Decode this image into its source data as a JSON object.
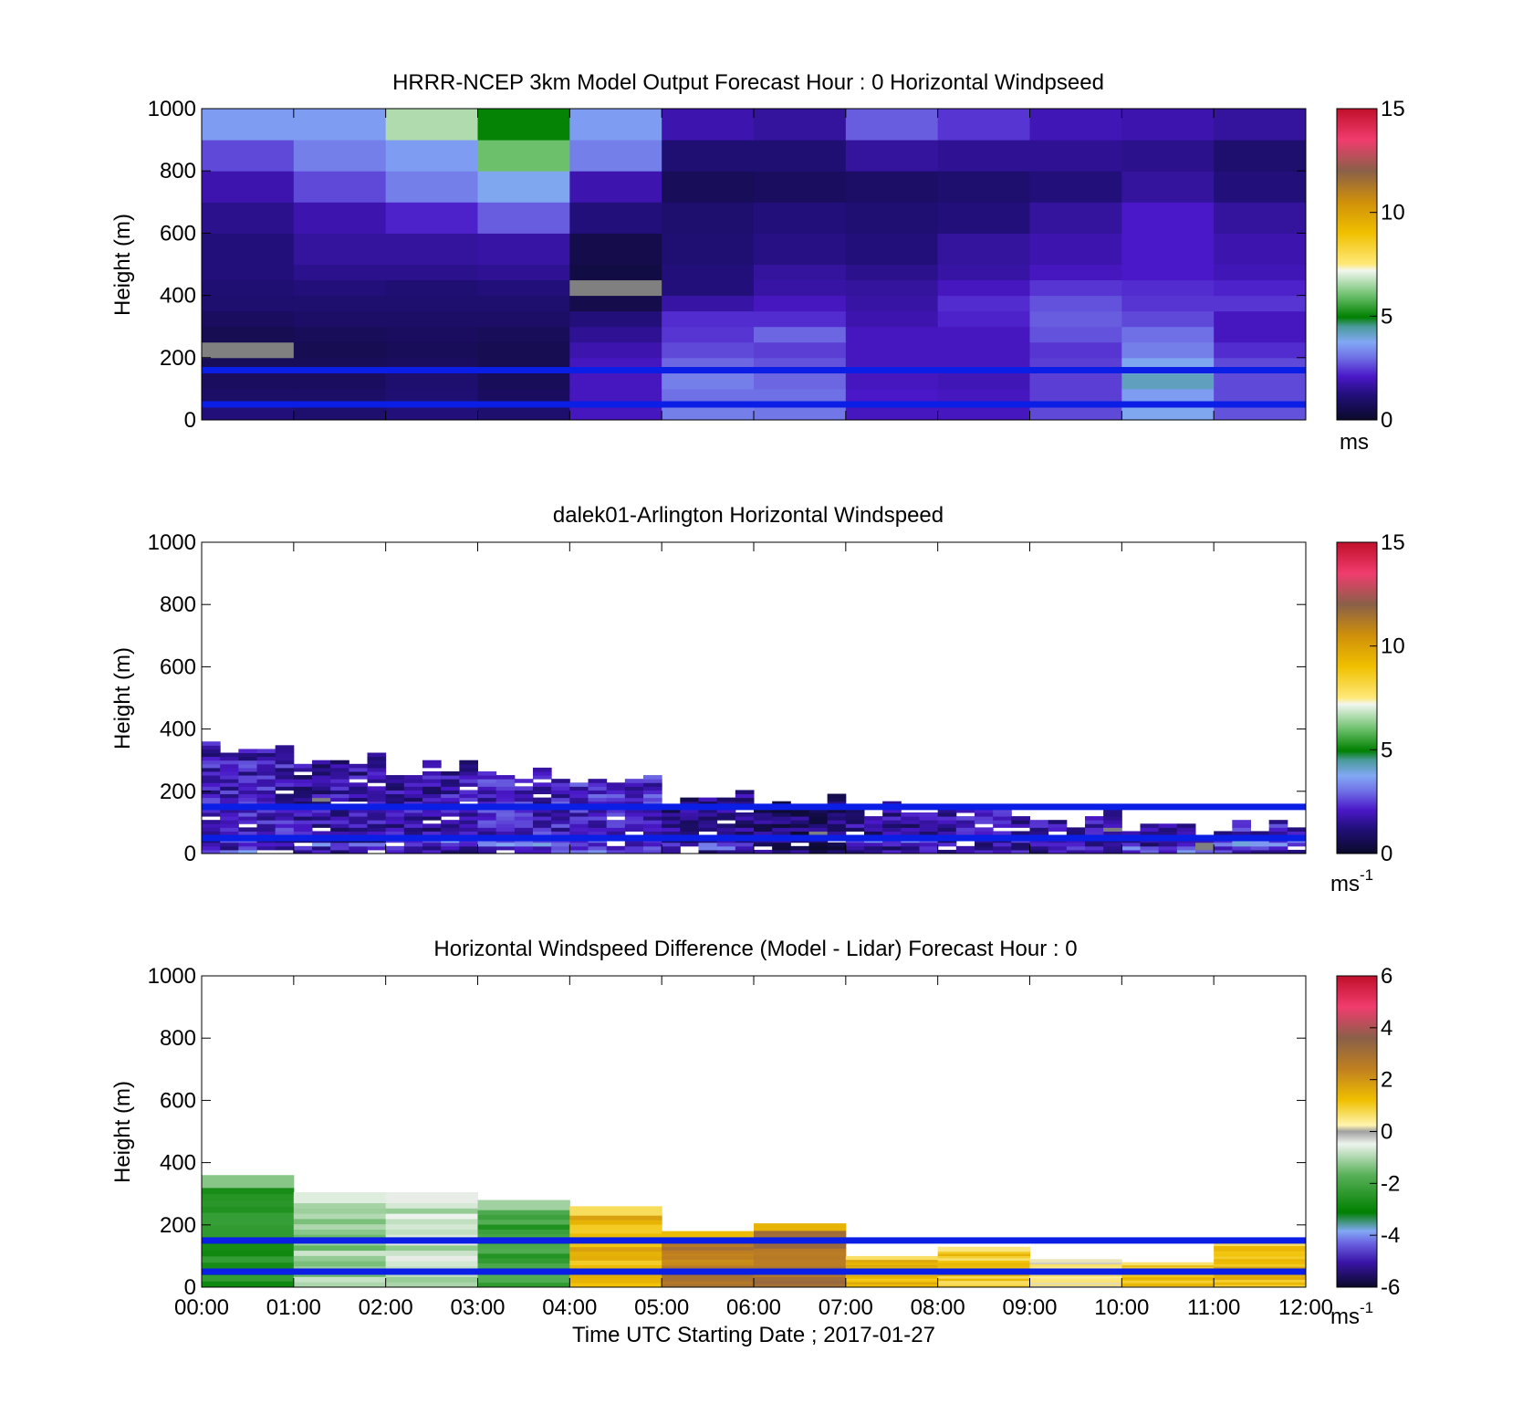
{
  "figure": {
    "xlabel": "Time UTC  Starting Date ; 2017-01-27",
    "x_ticks": [
      "00:00",
      "01:00",
      "02:00",
      "03:00",
      "04:00",
      "05:00",
      "06:00",
      "07:00",
      "08:00",
      "09:00",
      "10:00",
      "11:00",
      "12:00"
    ]
  },
  "chart_data": [
    {
      "type": "heatmap",
      "title": "HRRR-NCEP 3km Model Output   Forecast Hour : 0 Horizontal Windpseed",
      "ylabel": "Height (m)",
      "xlabel": "",
      "x_range": [
        "00:00",
        "12:00"
      ],
      "ylim": [
        0,
        1000
      ],
      "y_ticks": [
        "0",
        "200",
        "400",
        "600",
        "800",
        "1000"
      ],
      "colorbar": {
        "min": 0,
        "max": 15,
        "ticks": [
          "0",
          "5",
          "10",
          "15"
        ],
        "unit": "ms",
        "unit_exp": ""
      },
      "reference_lines_m": [
        160,
        50
      ],
      "reference_line_color": "#0a1ee6",
      "grid": false,
      "hours": [
        0,
        1,
        2,
        3,
        4,
        5,
        6,
        7,
        8,
        9,
        10,
        11
      ],
      "levels_m": [
        [
          0,
          50
        ],
        [
          50,
          100
        ],
        [
          100,
          150
        ],
        [
          150,
          200
        ],
        [
          200,
          250
        ],
        [
          250,
          300
        ],
        [
          300,
          350
        ],
        [
          350,
          400
        ],
        [
          400,
          450
        ],
        [
          450,
          500
        ],
        [
          500,
          600
        ],
        [
          600,
          700
        ],
        [
          700,
          800
        ],
        [
          800,
          900
        ],
        [
          900,
          1000
        ]
      ],
      "values": [
        [
          1.2,
          1.0,
          1.2,
          1.0,
          2.0,
          3.2,
          3.1,
          2.0,
          2.0,
          2.6,
          3.8,
          2.7
        ],
        [
          0.9,
          0.9,
          1.1,
          0.8,
          2.0,
          3.0,
          3.0,
          2.1,
          2.0,
          2.5,
          3.6,
          2.6
        ],
        [
          0.8,
          0.8,
          1.0,
          0.7,
          2.0,
          3.2,
          2.9,
          2.0,
          1.9,
          2.5,
          4.2,
          2.6
        ],
        [
          0.7,
          0.7,
          0.8,
          0.6,
          2.0,
          2.9,
          2.7,
          2.0,
          2.0,
          2.5,
          3.8,
          2.6
        ],
        [
          "no_data",
          0.6,
          0.7,
          0.6,
          1.8,
          2.6,
          2.5,
          2.0,
          2.0,
          2.4,
          3.2,
          2.3
        ],
        [
          0.6,
          0.7,
          0.8,
          0.7,
          1.5,
          2.4,
          2.9,
          2.0,
          2.0,
          2.7,
          3.0,
          2.0
        ],
        [
          0.8,
          0.9,
          0.9,
          0.9,
          1.2,
          2.3,
          2.3,
          1.8,
          2.2,
          2.8,
          2.6,
          2.0
        ],
        [
          1.0,
          1.0,
          1.0,
          1.0,
          0.5,
          1.7,
          2.0,
          1.7,
          2.3,
          2.7,
          2.4,
          2.4
        ],
        [
          1.1,
          1.2,
          1.1,
          1.2,
          "no_data",
          1.2,
          1.7,
          1.6,
          2.0,
          2.4,
          2.3,
          2.2
        ],
        [
          1.2,
          1.4,
          1.4,
          1.5,
          0.4,
          1.2,
          1.6,
          1.4,
          1.7,
          2.0,
          2.1,
          1.9
        ],
        [
          1.2,
          1.6,
          1.6,
          1.7,
          0.5,
          1.1,
          1.3,
          1.2,
          1.6,
          1.8,
          2.1,
          1.8
        ],
        [
          1.4,
          1.8,
          2.2,
          2.8,
          1.2,
          1.0,
          1.2,
          1.1,
          1.2,
          1.6,
          2.1,
          1.6
        ],
        [
          1.8,
          2.6,
          3.2,
          3.8,
          1.8,
          0.7,
          0.8,
          0.9,
          1.0,
          1.2,
          1.6,
          1.2
        ],
        [
          2.6,
          3.2,
          3.6,
          6.0,
          3.2,
          1.1,
          1.1,
          1.6,
          1.5,
          1.5,
          1.4,
          1.0
        ],
        [
          3.6,
          3.6,
          6.6,
          5.0,
          3.6,
          1.8,
          1.6,
          2.8,
          2.4,
          1.9,
          1.8,
          1.6
        ]
      ]
    },
    {
      "type": "heatmap",
      "title": "dalek01-Arlington  Horizontal Windspeed",
      "ylabel": "Height (m)",
      "xlabel": "",
      "x_range": [
        "00:00",
        "12:00"
      ],
      "ylim": [
        0,
        1000
      ],
      "y_ticks": [
        "0",
        "200",
        "400",
        "600",
        "800",
        "1000"
      ],
      "colorbar": {
        "min": 0,
        "max": 15,
        "ticks": [
          "0",
          "5",
          "10",
          "15"
        ],
        "unit": "ms",
        "unit_exp": "-1"
      },
      "reference_lines_m": [
        150,
        50
      ],
      "reference_line_color": "#0a1ee6",
      "grid": false,
      "hours": [
        0,
        1,
        2,
        3,
        4,
        5,
        6,
        7,
        8,
        9,
        10,
        11
      ],
      "column_top_m": [
        360,
        320,
        300,
        290,
        270,
        200,
        190,
        170,
        150,
        140,
        100,
        120
      ],
      "column_speed_ms": [
        1.9,
        1.6,
        1.7,
        2.0,
        2.1,
        1.2,
        0.9,
        1.5,
        1.7,
        1.8,
        1.6,
        1.9
      ]
    },
    {
      "type": "heatmap",
      "title": "Horizontal Windspeed Difference (Model - Lidar) Forecast Hour : 0",
      "ylabel": "Height (m)",
      "xlabel": "Time UTC  Starting Date ; 2017-01-27",
      "x_range": [
        "00:00",
        "12:00"
      ],
      "ylim": [
        0,
        1000
      ],
      "y_ticks": [
        "0",
        "200",
        "400",
        "600",
        "800",
        "1000"
      ],
      "colorbar": {
        "min": -6,
        "max": 6,
        "ticks": [
          "-6",
          "-4",
          "-2",
          "0",
          "2",
          "4",
          "6"
        ],
        "unit": "ms",
        "unit_exp": "-1"
      },
      "reference_lines_m": [
        150,
        50
      ],
      "reference_line_color": "#0a1ee6",
      "grid": false,
      "hours": [
        0,
        1,
        2,
        3,
        4,
        5,
        6,
        7,
        8,
        9,
        10,
        11
      ],
      "column_top_m": [
        360,
        305,
        305,
        280,
        260,
        180,
        205,
        100,
        130,
        90,
        80,
        150
      ],
      "column_diff_ms": [
        -2.6,
        -1.2,
        -0.8,
        -2.2,
        1.4,
        2.6,
        2.9,
        1.3,
        1.0,
        0.3,
        1.2,
        1.3
      ]
    }
  ]
}
